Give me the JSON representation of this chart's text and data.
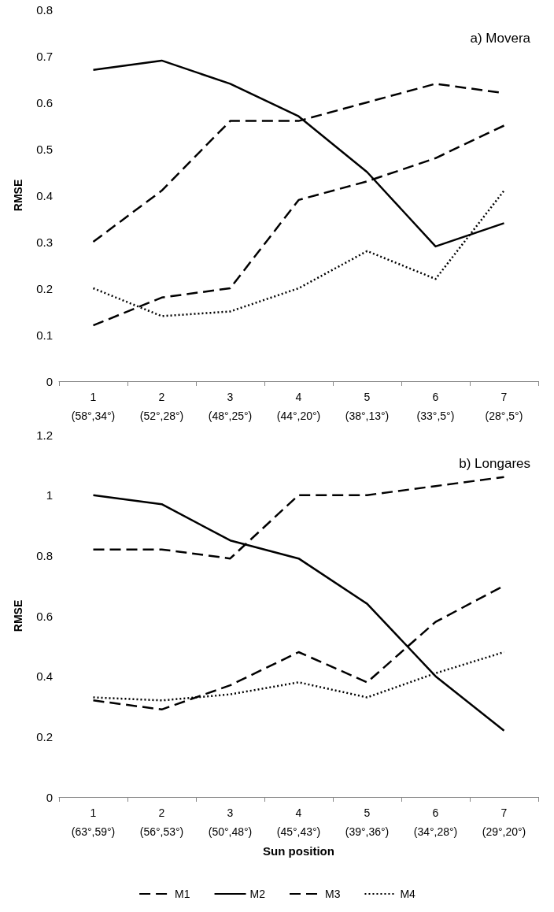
{
  "chart_data": [
    {
      "type": "line",
      "ylabel": "RMSE",
      "annotations": [
        "a) Movera"
      ],
      "categories": [
        "1\n(58°,34°)",
        "2\n(52°,28°)",
        "3\n(48°,25°)",
        "4\n(44°,20°)",
        "5\n(38°,13°)",
        "6\n(33°,5°)",
        "7\n(28°,5°)"
      ],
      "ylim": [
        0,
        0.8
      ],
      "yticks": [
        0,
        0.1,
        0.2,
        0.3,
        0.4,
        0.5,
        0.6,
        0.7,
        0.8
      ],
      "grid": false,
      "legend": false,
      "marker": "none",
      "series": [
        {
          "color": "#000000",
          "line_style": "dashed",
          "values": [
            0.3,
            0.41,
            0.56,
            0.56,
            0.6,
            0.64,
            0.62
          ]
        },
        {
          "color": "#000000",
          "line_style": "solid",
          "values": [
            0.67,
            0.69,
            0.64,
            0.57,
            0.45,
            0.29,
            0.34
          ]
        },
        {
          "color": "#000000",
          "line_style": "dashed",
          "values": [
            0.12,
            0.18,
            0.2,
            0.39,
            0.43,
            0.48,
            0.55
          ]
        },
        {
          "color": "#000000",
          "line_style": "dotted",
          "values": [
            0.2,
            0.14,
            0.15,
            0.2,
            0.28,
            0.22,
            0.41
          ]
        }
      ]
    },
    {
      "type": "line",
      "ylabel": "RMSE",
      "xlabel": "Sun position",
      "annotations": [
        "b) Longares"
      ],
      "categories": [
        "1\n(63°,59°)",
        "2\n(56°,53°)",
        "3\n(50°,48°)",
        "4\n(45°,43°)",
        "5\n(39°,36°)",
        "6\n(34°,28°)",
        "7\n(29°,20°)"
      ],
      "ylim": [
        0,
        1.2
      ],
      "yticks": [
        0,
        0.2,
        0.4,
        0.6,
        0.8,
        1,
        1.2
      ],
      "grid": false,
      "legend": "bottom",
      "marker": "none",
      "series": [
        {
          "name": "M1",
          "color": "#000000",
          "line_style": "dashed",
          "values": [
            0.82,
            0.82,
            0.79,
            1.0,
            1.0,
            1.03,
            1.06
          ]
        },
        {
          "name": "M2",
          "color": "#000000",
          "line_style": "solid",
          "values": [
            1.0,
            0.97,
            0.85,
            0.79,
            0.64,
            0.4,
            0.22
          ]
        },
        {
          "name": "M3",
          "color": "#000000",
          "line_style": "dashed",
          "values": [
            0.32,
            0.29,
            0.37,
            0.48,
            0.38,
            0.58,
            0.7
          ]
        },
        {
          "name": "M4",
          "color": "#000000",
          "line_style": "dotted",
          "values": [
            0.33,
            0.32,
            0.34,
            0.38,
            0.33,
            0.41,
            0.48
          ]
        }
      ]
    }
  ]
}
